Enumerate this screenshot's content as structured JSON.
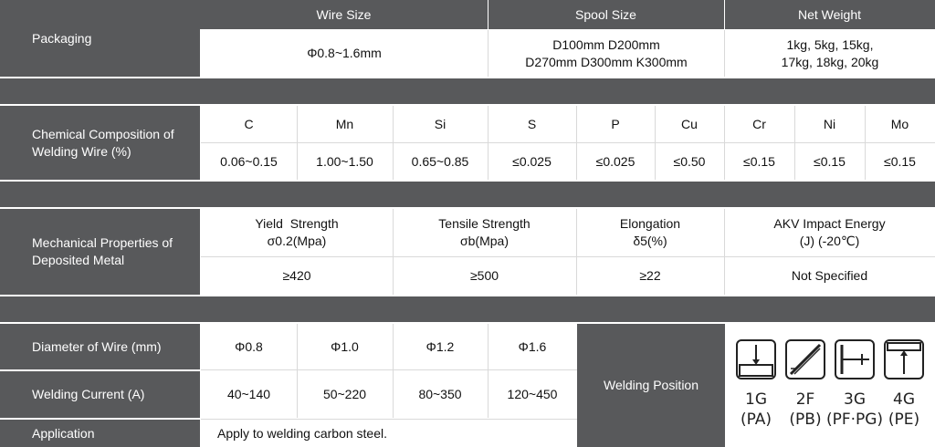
{
  "packaging": {
    "label": "Packaging",
    "headers": [
      "Wire Size",
      "Spool Size",
      "Net Weight"
    ],
    "wire_size": "Φ0.8~1.6mm",
    "spool_size_line1": "D100mm D200mm",
    "spool_size_line2": "D270mm D300mm K300mm",
    "net_weight_line1": "1kg, 5kg, 15kg,",
    "net_weight_line2": "17kg, 18kg, 20kg"
  },
  "chemical": {
    "label_line1": "Chemical Composition of",
    "label_line2": "Welding Wire (%)",
    "elements": [
      "C",
      "Mn",
      "Si",
      "S",
      "P",
      "Cu",
      "Cr",
      "Ni",
      "Mo"
    ],
    "values": [
      "0.06~0.15",
      "1.00~1.50",
      "0.65~0.85",
      "≤0.025",
      "≤0.025",
      "≤0.50",
      "≤0.15",
      "≤0.15",
      "≤0.15"
    ]
  },
  "mechanical": {
    "label_line1": "Mechanical Properties of",
    "label_line2": "Deposited Metal",
    "headers": [
      {
        "line1": "Yield  Strength",
        "line2": "σ0.2(Mpa)"
      },
      {
        "line1": "Tensile Strength",
        "line2": "σb(Mpa)"
      },
      {
        "line1": "Elongation",
        "line2": "δ5(%)"
      },
      {
        "line1": "AKV Impact Energy",
        "line2": "(J) (-20℃)"
      }
    ],
    "values": [
      "≥420",
      "≥500",
      "≥22",
      "Not Specified"
    ]
  },
  "diameter": {
    "label": "Diameter of Wire (mm)",
    "values": [
      "Φ0.8",
      "Φ1.0",
      "Φ1.2",
      "Φ1.6"
    ]
  },
  "current": {
    "label": "Welding Current (A)",
    "values": [
      "40~140",
      "50~220",
      "80~350",
      "120~450"
    ]
  },
  "application": {
    "label": "Application",
    "text": "Apply to welding carbon steel."
  },
  "welding_position": {
    "label": "Welding Position",
    "positions": [
      {
        "code": "1G",
        "sub": "(PA)"
      },
      {
        "code": "2F",
        "sub": "(PB)"
      },
      {
        "code": "3G",
        "sub": "(PF·PG)"
      },
      {
        "code": "4G",
        "sub": "(PE)"
      }
    ]
  }
}
